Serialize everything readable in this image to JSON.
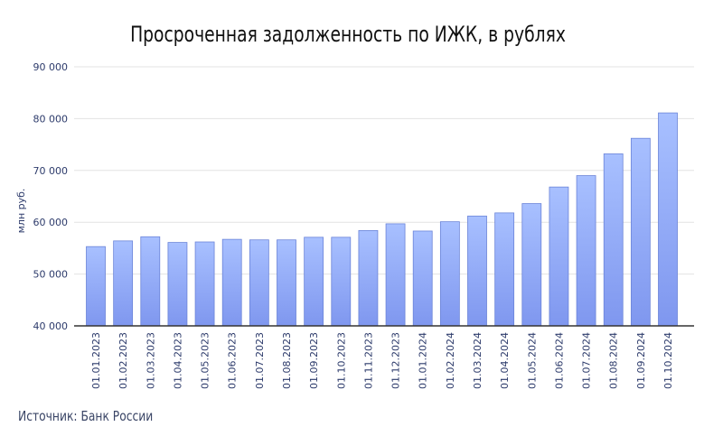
{
  "chart_data": {
    "type": "bar",
    "title": "Просроченная задолженность по ИЖК, в рублях",
    "ylabel": "млн руб.",
    "xlabel": "",
    "ylim": [
      40000,
      90000
    ],
    "yticks": [
      40000,
      50000,
      60000,
      70000,
      80000,
      90000
    ],
    "ytick_labels": [
      "40 000",
      "50 000",
      "60 000",
      "70 000",
      "80 000",
      "90 000"
    ],
    "grid": true,
    "bar_color_top": "#a8c0ff",
    "bar_color_bottom": "#7f97ef",
    "bar_stroke": "#6b84d8",
    "categories": [
      "01.01.2023",
      "01.02.2023",
      "01.03.2023",
      "01.04.2023",
      "01.05.2023",
      "01.06.2023",
      "01.07.2023",
      "01.08.2023",
      "01.09.2023",
      "01.10.2023",
      "01.11.2023",
      "01.12.2023",
      "01.01.2024",
      "01.02.2024",
      "01.03.2024",
      "01.04.2024",
      "01.05.2024",
      "01.06.2024",
      "01.07.2024",
      "01.08.2024",
      "01.09.2024",
      "01.10.2024"
    ],
    "values": [
      55300,
      56400,
      57200,
      56100,
      56200,
      56700,
      56600,
      56600,
      57100,
      57100,
      58400,
      59700,
      58300,
      60100,
      61200,
      61800,
      63600,
      66800,
      69000,
      73200,
      76200,
      81100
    ]
  },
  "source": "Источник: Банк России"
}
